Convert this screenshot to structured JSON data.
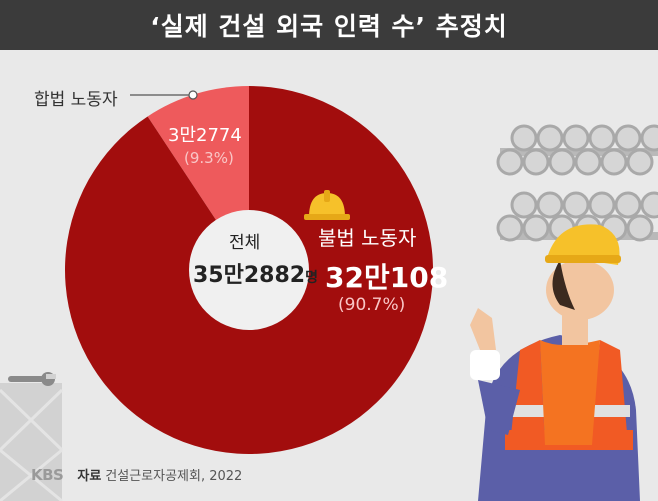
{
  "header": {
    "title": "‘실제 건설 외국 인력 수’ 추정치"
  },
  "chart_data": {
    "type": "pie",
    "style": "donut",
    "categories": [
      "합법 노동자",
      "불법 노동자"
    ],
    "values": [
      32774,
      320108
    ],
    "value_labels": [
      "3만2774",
      "32만108"
    ],
    "percent_labels": [
      "(9.3%)",
      "(90.7%)"
    ],
    "percents": [
      9.3,
      90.7
    ],
    "total": 352882,
    "total_label": "전체",
    "total_value_label": "35만2882",
    "total_unit": "명",
    "colors": [
      "#ee5a5c",
      "#a20d0d"
    ]
  },
  "footer": {
    "logo": "KBS",
    "source_label": "자료",
    "source_text": "건설근로자공제회, 2022"
  },
  "icons": [
    "helmet-icon",
    "worker-illustration",
    "pipes-illustration",
    "wrench-icon"
  ]
}
